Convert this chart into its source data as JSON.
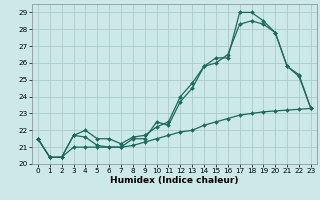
{
  "xlabel": "Humidex (Indice chaleur)",
  "bg_color": "#cce8e8",
  "grid_color": "#aacccc",
  "line_color": "#1a6b5a",
  "xlim": [
    -0.5,
    23.5
  ],
  "ylim": [
    20.0,
    29.5
  ],
  "xticks": [
    0,
    1,
    2,
    3,
    4,
    5,
    6,
    7,
    8,
    9,
    10,
    11,
    12,
    13,
    14,
    15,
    16,
    17,
    18,
    19,
    20,
    21,
    22,
    23
  ],
  "yticks": [
    20,
    21,
    22,
    23,
    24,
    25,
    26,
    27,
    28,
    29
  ],
  "line1_x": [
    0,
    1,
    2,
    3,
    4,
    5,
    6,
    7,
    8,
    9,
    10,
    11,
    12,
    13,
    14,
    15,
    16,
    17,
    18,
    19,
    20,
    21,
    22,
    23
  ],
  "line1_y": [
    21.5,
    20.4,
    20.4,
    21.7,
    21.6,
    21.1,
    21.0,
    21.0,
    21.5,
    21.5,
    22.5,
    22.3,
    23.7,
    24.5,
    25.8,
    26.3,
    26.3,
    29.0,
    29.0,
    28.5,
    27.8,
    25.8,
    25.3,
    23.3
  ],
  "line2_x": [
    0,
    1,
    2,
    3,
    4,
    5,
    6,
    7,
    8,
    9,
    10,
    11,
    12,
    13,
    14,
    15,
    16,
    17,
    18,
    19,
    20,
    21,
    22,
    23
  ],
  "line2_y": [
    21.5,
    20.4,
    20.4,
    21.7,
    22.0,
    21.5,
    21.5,
    21.2,
    21.6,
    21.7,
    22.2,
    22.5,
    24.0,
    24.8,
    25.8,
    26.0,
    26.5,
    28.3,
    28.5,
    28.3,
    27.8,
    25.8,
    25.2,
    23.3
  ],
  "line3_x": [
    0,
    1,
    2,
    3,
    4,
    5,
    6,
    7,
    8,
    9,
    10,
    11,
    12,
    13,
    14,
    15,
    16,
    17,
    18,
    19,
    20,
    21,
    22,
    23
  ],
  "line3_y": [
    21.5,
    20.4,
    20.4,
    21.0,
    21.0,
    21.0,
    21.0,
    21.0,
    21.1,
    21.3,
    21.5,
    21.7,
    21.9,
    22.0,
    22.3,
    22.5,
    22.7,
    22.9,
    23.0,
    23.1,
    23.15,
    23.2,
    23.25,
    23.3
  ]
}
